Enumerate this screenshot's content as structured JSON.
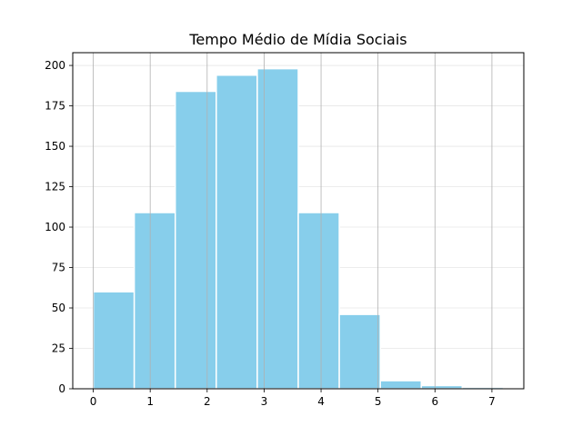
{
  "chart_data": {
    "type": "bar",
    "title": "Tempo Médio de Mídia Sociais",
    "xlabel": "",
    "ylabel": "",
    "bins": [
      {
        "start": 0.0,
        "end": 0.72,
        "value": 60
      },
      {
        "start": 0.72,
        "end": 1.44,
        "value": 109
      },
      {
        "start": 1.44,
        "end": 2.16,
        "value": 184
      },
      {
        "start": 2.16,
        "end": 2.88,
        "value": 194
      },
      {
        "start": 2.88,
        "end": 3.6,
        "value": 198
      },
      {
        "start": 3.6,
        "end": 4.32,
        "value": 109
      },
      {
        "start": 4.32,
        "end": 5.04,
        "value": 46
      },
      {
        "start": 5.04,
        "end": 5.76,
        "value": 5
      },
      {
        "start": 5.76,
        "end": 6.48,
        "value": 2
      },
      {
        "start": 6.48,
        "end": 7.2,
        "value": 1
      }
    ],
    "xticks": [
      "0",
      "1",
      "2",
      "3",
      "4",
      "5",
      "6",
      "7"
    ],
    "yticks": [
      "0",
      "25",
      "50",
      "75",
      "100",
      "125",
      "150",
      "175",
      "200"
    ],
    "xlim": [
      -0.36,
      7.56
    ],
    "ylim": [
      0,
      207.9
    ],
    "grid": "vertical-major, horizontal-light",
    "bar_color": "#87ceeb",
    "bar_edge_color": "#ffffff"
  }
}
